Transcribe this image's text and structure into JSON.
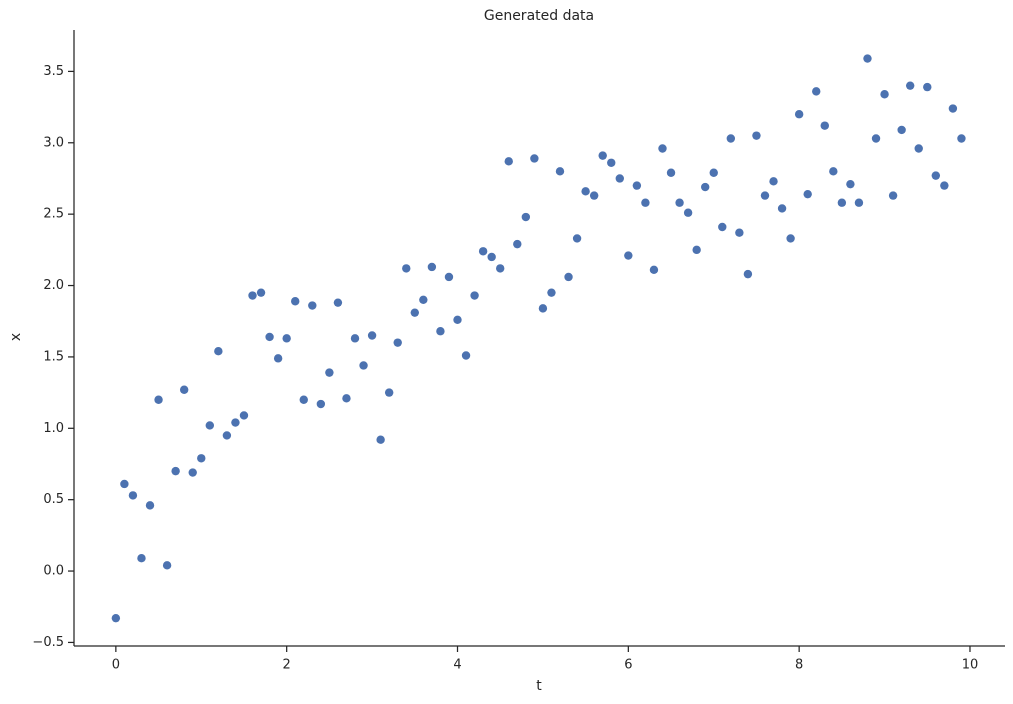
{
  "chart_data": {
    "type": "scatter",
    "title": "Generated data",
    "x_label": "t",
    "y_label": "x",
    "series": [
      {
        "name": "x",
        "color": "#4c72b0",
        "x": [
          0.0,
          0.1,
          0.2,
          0.3,
          0.4,
          0.5,
          0.6,
          0.7,
          0.8,
          0.9,
          1.0,
          1.1,
          1.2,
          1.3,
          1.4,
          1.5,
          1.6,
          1.7,
          1.8,
          1.9,
          2.0,
          2.1,
          2.2,
          2.3,
          2.4,
          2.5,
          2.6,
          2.7,
          2.8,
          2.9,
          3.0,
          3.1,
          3.2,
          3.3,
          3.4,
          3.5,
          3.6,
          3.7,
          3.8,
          3.9,
          4.0,
          4.1,
          4.2,
          4.3,
          4.4,
          4.5,
          4.6,
          4.7,
          4.8,
          4.9,
          5.0,
          5.1,
          5.2,
          5.3,
          5.4,
          5.5,
          5.6,
          5.7,
          5.8,
          5.9,
          6.0,
          6.1,
          6.2,
          6.3,
          6.4,
          6.5,
          6.6,
          6.7,
          6.8,
          6.9,
          7.0,
          7.1,
          7.2,
          7.3,
          7.4,
          7.5,
          7.6,
          7.7,
          7.8,
          7.9,
          8.0,
          8.1,
          8.2,
          8.3,
          8.4,
          8.5,
          8.6,
          8.7,
          8.8,
          8.9,
          9.0,
          9.1,
          9.2,
          9.3,
          9.4,
          9.5,
          9.6,
          9.7,
          9.8,
          9.9
        ],
        "values": [
          -0.33,
          0.61,
          0.53,
          0.09,
          0.46,
          1.2,
          0.04,
          0.7,
          1.27,
          0.69,
          0.79,
          1.02,
          1.54,
          0.95,
          1.04,
          1.09,
          1.93,
          1.95,
          1.64,
          1.49,
          1.63,
          1.89,
          1.2,
          1.86,
          1.17,
          1.39,
          1.88,
          1.21,
          1.63,
          1.44,
          1.65,
          0.92,
          1.25,
          1.6,
          2.12,
          1.81,
          1.9,
          2.13,
          1.68,
          2.06,
          1.76,
          1.51,
          1.93,
          2.24,
          2.2,
          2.12,
          2.87,
          2.29,
          2.48,
          2.89,
          1.84,
          1.95,
          2.8,
          2.06,
          2.33,
          2.66,
          2.63,
          2.91,
          2.86,
          2.75,
          2.21,
          2.7,
          2.58,
          2.11,
          2.96,
          2.79,
          2.58,
          2.51,
          2.25,
          2.69,
          2.79,
          2.41,
          3.03,
          2.37,
          2.08,
          3.05,
          2.63,
          2.73,
          2.54,
          2.33,
          3.2,
          2.64,
          3.36,
          3.12,
          2.8,
          2.58,
          2.71,
          2.58,
          3.59,
          3.03,
          3.34,
          2.63,
          3.09,
          3.4,
          2.96,
          3.39,
          2.77,
          2.7,
          3.24,
          3.03
        ]
      }
    ],
    "xlim": [
      -0.49,
      10.41
    ],
    "ylim": [
      -0.525,
      3.79
    ],
    "xticks": [
      0,
      2,
      4,
      6,
      8,
      10
    ],
    "yticks": [
      {
        "value": -0.5,
        "label": "−0.5"
      },
      {
        "value": 0,
        "label": "0.0"
      },
      {
        "value": 0.5,
        "label": "0.5"
      },
      {
        "value": 1,
        "label": "1.0"
      },
      {
        "value": 1.5,
        "label": "1.5"
      },
      {
        "value": 2,
        "label": "2.0"
      },
      {
        "value": 2.5,
        "label": "2.5"
      },
      {
        "value": 3,
        "label": "3.0"
      },
      {
        "value": 3.5,
        "label": "3.5"
      }
    ],
    "grid": false
  }
}
